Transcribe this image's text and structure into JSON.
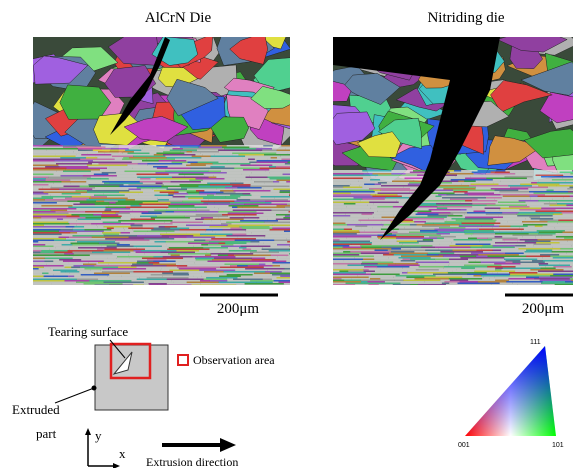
{
  "figure": {
    "left_panel": {
      "title": "AlCrN Die",
      "scale_bar": "200μm"
    },
    "right_panel": {
      "title": "Nitriding die",
      "scale_bar": "200μm"
    },
    "schematic": {
      "tearing_label": "Tearing surface",
      "observation_label": "Observation area",
      "part_label_line1": "Extruded",
      "part_label_line2": "part",
      "axis_y": "y",
      "axis_x": "x",
      "direction_label": "Extrusion direction"
    },
    "color_key": {
      "top": "111",
      "left": "001",
      "right": "101"
    }
  }
}
